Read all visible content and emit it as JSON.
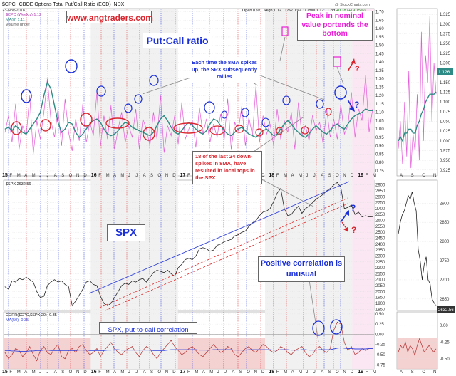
{
  "header": {
    "symbol": "$CPC",
    "title": "CBOE Options Total Put/Call Ratio (EOD) INDX",
    "date": "23-Nov-2018",
    "open_label": "Open",
    "open": "0.97",
    "high_label": "High",
    "high": "1.12",
    "low_label": "Low",
    "low": "0.92",
    "close_label": "Close",
    "close": "1.12",
    "chg_label": "Chg",
    "chg": "+0.18 (+19.15%)",
    "watermark": "@ StockCharts.com",
    "legend_weekly": "$CPC (Weekly) 1.12",
    "legend_ma": "MA(8) 1.11",
    "legend_volume": "Volume undef"
  },
  "panel2_legend": "$SPX 2632.56",
  "panel3_legend": "CORR($CPC,$SPX,20) -0.35",
  "panel3_legend_ma": "MA(50) -0.35",
  "annotations": {
    "site": "www.angtraders.com",
    "putcall_title": "Put:Call ratio",
    "peak_text": "Peak in nominal value portends the bottom",
    "spike_text": "Each time the 8MA spikes up, the SPX subsequently rallies",
    "down_spikes_text": "18 of the last 24 down-spikes in 8MA, have resulted in local tops in the SPX",
    "spx_title": "SPX",
    "positive_corr": "Positive correlation is unusual",
    "corr_label": "SPX, put-to-call correlation",
    "q1": "?",
    "q2": "?",
    "q3": "?",
    "q4": "?",
    "last_cpc": "1.126",
    "last_spx": "2632.56"
  },
  "colors": {
    "accent_blue": "#1a2fd8",
    "accent_red": "#d9262e",
    "accent_magenta": "#e81fd6",
    "cpc_line": "#e35bd8",
    "ma_line": "#2e8a84",
    "spx_line": "#222222",
    "trend_blue": "#3344dd",
    "trend_red": "#e02020"
  },
  "chart_data": [
    {
      "type": "line",
      "title": "CBOE Options Total Put/Call Ratio (EOD)",
      "x_ticks": [
        "15",
        "F",
        "M",
        "A",
        "M",
        "J",
        "J",
        "A",
        "S",
        "O",
        "N",
        "D",
        "16",
        "F",
        "M",
        "A",
        "M",
        "J",
        "J",
        "A",
        "S",
        "O",
        "N",
        "D",
        "17",
        "F",
        "M",
        "A",
        "M",
        "J",
        "J",
        "A",
        "S",
        "O",
        "N",
        "D",
        "18",
        "F",
        "M",
        "A",
        "M",
        "J",
        "J",
        "A",
        "S",
        "O",
        "N",
        "D",
        "19",
        "F",
        "M"
      ],
      "y_ticks": [
        0.75,
        0.8,
        0.85,
        0.9,
        0.95,
        1.0,
        1.05,
        1.1,
        1.15,
        1.2,
        1.25,
        1.3,
        1.35,
        1.4,
        1.45,
        1.5,
        1.55,
        1.6,
        1.65,
        1.7
      ],
      "ylim": [
        0.72,
        1.72
      ],
      "series": [
        {
          "name": "$CPC (Weekly)",
          "values": [
            0.98,
            1.08,
            0.92,
            1.15,
            0.88,
            1.02,
            0.96,
            1.2,
            0.85,
            1.05,
            0.94,
            1.1,
            1.3,
            1.05,
            0.95,
            1.12,
            0.9,
            1.18,
            0.98,
            0.87,
            1.06,
            0.93,
            1.15,
            0.92,
            1.04,
            0.96,
            1.22,
            0.9,
            1.08,
            0.94,
            1.14,
            0.88,
            1.0,
            1.1,
            0.92,
            1.02,
            0.95,
            1.12,
            0.88,
            1.06,
            1.0,
            0.9,
            1.1,
            0.94,
            1.2,
            0.86,
            1.02,
            0.96,
            1.08,
            0.91,
            1.16,
            0.94,
            1.0,
            1.05,
            0.89,
            1.13,
            0.97,
            1.06,
            0.92,
            1.03,
            0.95,
            1.09,
            0.93,
            1.18,
            0.88,
            1.04,
            0.99,
            1.14,
            0.9,
            1.07,
            0.96,
            1.26,
            0.92,
            1.08,
            0.97,
            1.03,
            0.9,
            1.12,
            0.94,
            1.05,
            0.98,
            1.1,
            0.88,
            1.16,
            0.96,
            1.02,
            0.93,
            1.08,
            0.99,
            1.04,
            0.91,
            1.12,
            0.95,
            1.06,
            0.94,
            1.15,
            0.97,
            1.02,
            1.22,
            0.95,
            1.12,
            1.05,
            1.32,
            0.98,
            1.12
          ]
        },
        {
          "name": "MA(8)",
          "values": [
            1.0,
            1.01,
            0.99,
            1.02,
            1.0,
            0.98,
            0.97,
            1.0,
            1.03,
            1.06,
            1.1,
            1.2,
            1.28,
            1.24,
            1.14,
            1.04,
            0.98,
            1.0,
            1.04,
            1.03,
            0.98,
            0.95,
            0.97,
            1.0,
            1.03,
            1.05,
            1.06,
            1.04,
            1.0,
            0.97,
            0.96,
            0.97,
            0.99,
            1.02,
            1.04,
            1.03,
            1.01,
            1.0,
            0.99,
            0.98,
            0.97,
            0.96,
            0.98,
            1.02,
            1.06,
            1.08,
            1.05,
            1.01,
            0.98,
            0.97,
            0.99,
            1.02,
            1.04,
            1.02,
            1.0,
            0.98,
            0.97,
            0.99,
            1.03,
            1.06,
            1.05,
            1.02,
            0.99,
            0.97,
            0.96,
            0.98,
            1.0,
            1.01,
            0.99,
            0.97,
            0.96,
            0.95,
            0.97,
            0.99,
            1.0,
            0.98,
            0.96,
            0.97,
            1.0,
            1.03,
            1.05,
            1.03,
            1.0,
            0.98,
            0.96,
            0.95,
            0.97,
            1.0,
            1.02,
            1.0,
            0.98,
            0.97,
            0.99,
            1.02,
            1.03,
            1.01,
            1.0,
            1.03,
            1.06,
            1.08,
            1.09,
            1.1,
            1.12,
            1.11,
            1.11
          ]
        }
      ]
    },
    {
      "type": "line",
      "title": "$SPX",
      "y_ticks": [
        1850,
        1900,
        1950,
        2000,
        2050,
        2100,
        2150,
        2200,
        2250,
        2300,
        2350,
        2400,
        2450,
        2500,
        2550,
        2600,
        2650,
        2700,
        2750,
        2800,
        2850,
        2900
      ],
      "ylim": [
        1840,
        2940
      ],
      "series": [
        {
          "name": "$SPX",
          "values": [
            2040,
            2020,
            2090,
            2080,
            2110,
            2100,
            2120,
            2100,
            2080,
            2000,
            1950,
            1960,
            2050,
            2080,
            2100,
            2080,
            2090,
            2060,
            2040,
            1880,
            1920,
            1970,
            2020,
            2080,
            2090,
            2060,
            2050,
            1960,
            1900,
            1880,
            1900,
            1950,
            2000,
            2050,
            2070,
            2060,
            2090,
            2080,
            2100,
            2110,
            2080,
            2120,
            2160,
            2180,
            2170,
            2160,
            2180,
            2150,
            2130,
            2200,
            2230,
            2270,
            2280,
            2270,
            2300,
            2360,
            2370,
            2360,
            2340,
            2350,
            2390,
            2400,
            2420,
            2430,
            2440,
            2470,
            2480,
            2500,
            2510,
            2550,
            2580,
            2600,
            2640,
            2670,
            2680,
            2700,
            2760,
            2830,
            2870,
            2700,
            2640,
            2650,
            2690,
            2720,
            2660,
            2700,
            2720,
            2750,
            2780,
            2800,
            2820,
            2850,
            2870,
            2900,
            2920,
            2880,
            2700,
            2710,
            2730,
            2650,
            2670,
            2630,
            2640,
            2630,
            2632
          ]
        }
      ]
    },
    {
      "type": "line",
      "title": "CORR($CPC,$SPX,20)",
      "y_ticks": [
        -0.75,
        -0.5,
        -0.25,
        0.0,
        0.25,
        0.5
      ],
      "ylim": [
        -0.85,
        0.55
      ],
      "series": [
        {
          "name": "CORR($CPC,$SPX,20)",
          "values": [
            -0.45,
            -0.6,
            -0.5,
            -0.35,
            -0.4,
            -0.55,
            -0.45,
            -0.3,
            -0.5,
            -0.65,
            -0.4,
            -0.3,
            -0.45,
            -0.5,
            -0.35,
            -0.25,
            -0.55,
            -0.6,
            -0.4,
            -0.35,
            -0.45,
            -0.3,
            -0.25,
            -0.4,
            -0.5,
            -0.45,
            -0.35,
            -0.55,
            -0.4,
            -0.3,
            -0.2,
            -0.35,
            -0.45,
            -0.5,
            -0.4,
            -0.35,
            -0.3,
            -0.45,
            -0.55,
            -0.4,
            -0.3,
            -0.35,
            -0.5,
            -0.6,
            -0.45,
            -0.35,
            -0.25,
            -0.15,
            -0.3,
            -0.4,
            -0.5,
            -0.45,
            -0.35,
            -0.3,
            -0.4,
            -0.5,
            -0.55,
            -0.45,
            -0.35,
            -0.25,
            -0.35,
            -0.45,
            -0.4,
            -0.3,
            -0.35,
            -0.5,
            -0.55,
            -0.45,
            -0.35,
            -0.3,
            -0.4,
            -0.45,
            -0.35,
            -0.25,
            -0.3,
            -0.4,
            -0.45,
            -0.4,
            -0.3,
            -0.35,
            -0.45,
            -0.5,
            -0.4,
            -0.35,
            -0.3,
            -0.45,
            -0.55,
            -0.5,
            -0.35,
            -0.3,
            -0.4,
            -0.45,
            -0.35,
            0.1,
            0.3,
            0.25,
            -0.2,
            -0.4,
            -0.3,
            -0.5,
            -0.45,
            -0.35,
            -0.4,
            -0.35,
            -0.35
          ]
        },
        {
          "name": "MA(50)",
          "values": [
            -0.4,
            -0.4,
            -0.41,
            -0.41,
            -0.42,
            -0.42,
            -0.42,
            -0.41,
            -0.41,
            -0.4,
            -0.4,
            -0.39,
            -0.39,
            -0.4,
            -0.4,
            -0.4,
            -0.4,
            -0.4,
            -0.4,
            -0.4,
            -0.4,
            -0.39,
            -0.39,
            -0.39,
            -0.4,
            -0.4,
            -0.4,
            -0.4,
            -0.4,
            -0.39,
            -0.39,
            -0.38,
            -0.38,
            -0.39,
            -0.39,
            -0.39,
            -0.39,
            -0.39,
            -0.39,
            -0.39,
            -0.39,
            -0.39,
            -0.4,
            -0.4,
            -0.4,
            -0.4,
            -0.39,
            -0.38,
            -0.38,
            -0.38,
            -0.38,
            -0.38,
            -0.38,
            -0.38,
            -0.38,
            -0.39,
            -0.39,
            -0.39,
            -0.39,
            -0.38,
            -0.38,
            -0.38,
            -0.38,
            -0.38,
            -0.38,
            -0.39,
            -0.39,
            -0.39,
            -0.39,
            -0.38,
            -0.38,
            -0.38,
            -0.38,
            -0.38,
            -0.38,
            -0.38,
            -0.39,
            -0.39,
            -0.38,
            -0.38,
            -0.38,
            -0.39,
            -0.39,
            -0.39,
            -0.38,
            -0.38,
            -0.39,
            -0.39,
            -0.39,
            -0.38,
            -0.38,
            -0.38,
            -0.38,
            -0.36,
            -0.34,
            -0.33,
            -0.34,
            -0.35,
            -0.35,
            -0.36,
            -0.36,
            -0.36,
            -0.36,
            -0.35,
            -0.35
          ]
        }
      ]
    },
    {
      "type": "line",
      "title": "$CPC inset",
      "x_ticks": [
        "A",
        "S",
        "O",
        "N"
      ],
      "y_ticks": [
        0.925,
        0.95,
        0.975,
        1.0,
        1.025,
        1.05,
        1.075,
        1.1,
        1.125,
        1.15,
        1.175,
        1.2,
        1.225,
        1.25,
        1.275,
        1.3,
        1.325
      ],
      "ylim": [
        0.91,
        1.34
      ],
      "series": [
        {
          "name": "$CPC",
          "values": [
            0.98,
            1.05,
            0.94,
            1.1,
            0.96,
            1.18,
            0.93,
            1.02,
            0.97,
            1.12,
            0.95,
            1.28,
            1.0,
            1.22,
            1.15,
            1.32,
            1.05,
            1.2,
            1.12
          ]
        },
        {
          "name": "MA(8)",
          "values": [
            1.0,
            1.01,
            1.0,
            1.02,
            1.02,
            1.03,
            1.03,
            1.02,
            1.02,
            1.04,
            1.05,
            1.07,
            1.08,
            1.1,
            1.11,
            1.12,
            1.12,
            1.12,
            1.126
          ]
        }
      ]
    },
    {
      "type": "line",
      "title": "$SPX inset",
      "y_ticks": [
        2650,
        2700,
        2750,
        2800,
        2850,
        2900
      ],
      "ylim": [
        2620,
        2960
      ],
      "series": [
        {
          "name": "$SPX",
          "values": [
            2820,
            2850,
            2870,
            2880,
            2900,
            2920,
            2910,
            2930,
            2900,
            2880,
            2780,
            2750,
            2700,
            2740,
            2760,
            2700,
            2690,
            2650,
            2640,
            2632
          ]
        }
      ]
    },
    {
      "type": "line",
      "title": "CORR inset",
      "y_ticks": [
        0.0,
        -0.25,
        -0.5
      ],
      "ylim": [
        -0.65,
        0.2
      ],
      "series": [
        {
          "name": "CORR",
          "values": [
            -0.4,
            -0.3,
            -0.35,
            -0.25,
            -0.4,
            -0.3,
            -0.35,
            -0.45,
            -0.3,
            -0.2,
            -0.3,
            -0.4,
            -0.35,
            -0.3,
            -0.35,
            -0.4,
            -0.35
          ]
        }
      ]
    }
  ]
}
